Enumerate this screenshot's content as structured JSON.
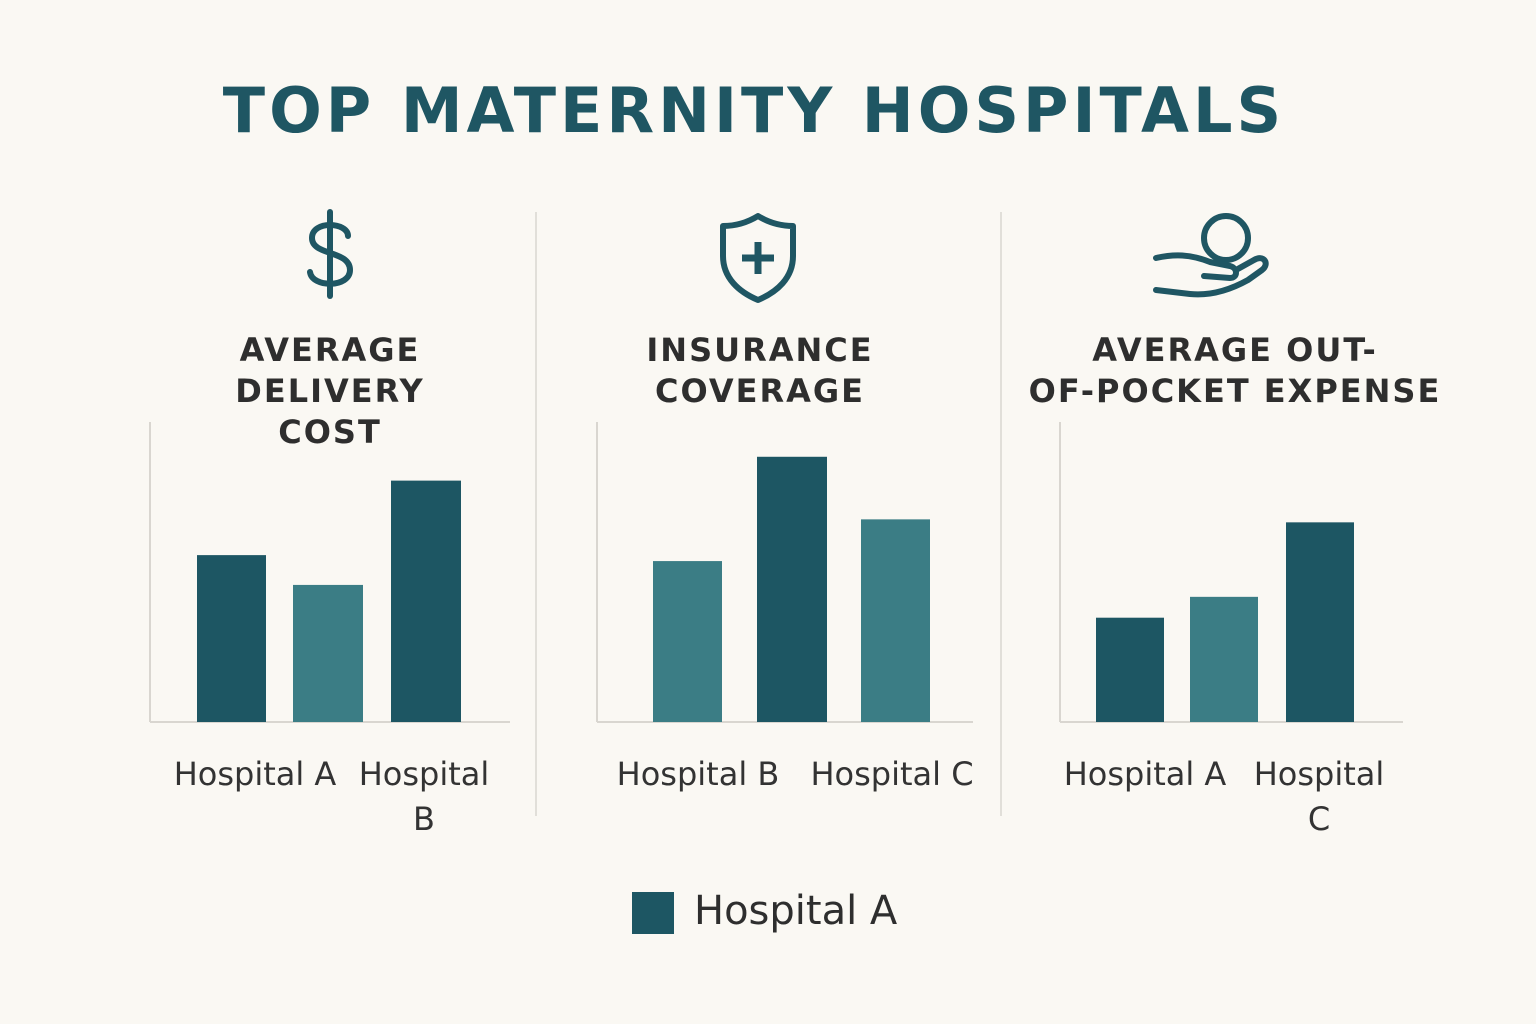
{
  "title": "TOP MATERNITY HOSPITALS",
  "colors": {
    "title": "#1f5663",
    "dark_bar": "#1d5663",
    "light_bar": "#3b7d85",
    "axis": "#d9d6d0",
    "background": "#faf8f3"
  },
  "legend": {
    "label": "Hospital A",
    "color": "#1d5663"
  },
  "panels": [
    {
      "icon": "dollar-icon",
      "title_lines": [
        "AVERAGE DELIVERY",
        "COST"
      ],
      "category_labels": [
        "Hospital A",
        "Hospital\nB"
      ]
    },
    {
      "icon": "shield-plus-icon",
      "title_lines": [
        "INSURANCE",
        "COVERAGE"
      ],
      "category_labels": [
        "Hospital B",
        "Hospital C"
      ]
    },
    {
      "icon": "hand-coin-icon",
      "title_lines": [
        "AVERAGE OUT-",
        "OF-POCKET EXPENSE"
      ],
      "category_labels": [
        "Hospital A",
        "Hospital\nC"
      ]
    }
  ],
  "chart_data": [
    {
      "type": "bar",
      "title": "AVERAGE DELIVERY COST",
      "ylim": [
        0,
        100
      ],
      "grid": false,
      "values": [
        56,
        46,
        81
      ],
      "bar_colors": [
        "#1d5663",
        "#3b7d85",
        "#1d5663"
      ]
    },
    {
      "type": "bar",
      "title": "INSURANCE COVERAGE",
      "ylim": [
        0,
        100
      ],
      "grid": false,
      "values": [
        54,
        89,
        68
      ],
      "bar_colors": [
        "#3b7d85",
        "#1d5663",
        "#3b7d85"
      ]
    },
    {
      "type": "bar",
      "title": "AVERAGE OUT-OF-POCKET EXPENSE",
      "ylim": [
        0,
        100
      ],
      "grid": false,
      "values": [
        35,
        42,
        67
      ],
      "bar_colors": [
        "#1d5663",
        "#3b7d85",
        "#1d5663"
      ]
    }
  ]
}
